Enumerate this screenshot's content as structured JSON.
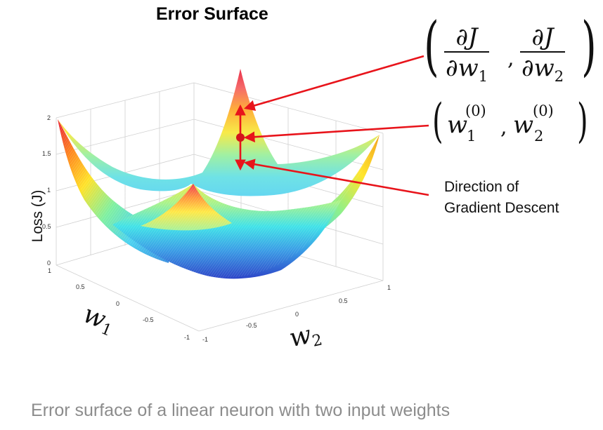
{
  "title": "Error Surface",
  "caption": "Error surface of a linear neuron with two input weights",
  "annotation": {
    "line1": "Direction of",
    "line2": "Gradient Descent"
  },
  "axes": {
    "z_label": "Loss (J)",
    "z_ticks": [
      "0",
      "0.5",
      "1",
      "1.5",
      "2"
    ],
    "w1_label": "w",
    "w1_sub": "1",
    "w2_label": "w",
    "w2_sub": "2",
    "w1_ticks": [
      "1",
      "0.5",
      "0",
      "-0.5",
      "-1"
    ],
    "w2_ticks": [
      "-1",
      "-0.5",
      "0",
      "0.5",
      "1"
    ]
  },
  "formula_gradient": {
    "num1": "∂J",
    "den1_var": "∂w",
    "den1_sub": "1",
    "num2": "∂J",
    "den2_var": "∂w",
    "den2_sub": "2",
    "sep": ","
  },
  "formula_point": {
    "var1": "w",
    "sup1": "(0)",
    "sub1": "1",
    "var2": "w",
    "sup2": "(0)",
    "sub2": "2",
    "sep": ","
  },
  "colors": {
    "arrow": "#e8141b",
    "marker": "#d4141b",
    "caption": "#8c8c8c",
    "axes": "#9a9a9a"
  }
}
